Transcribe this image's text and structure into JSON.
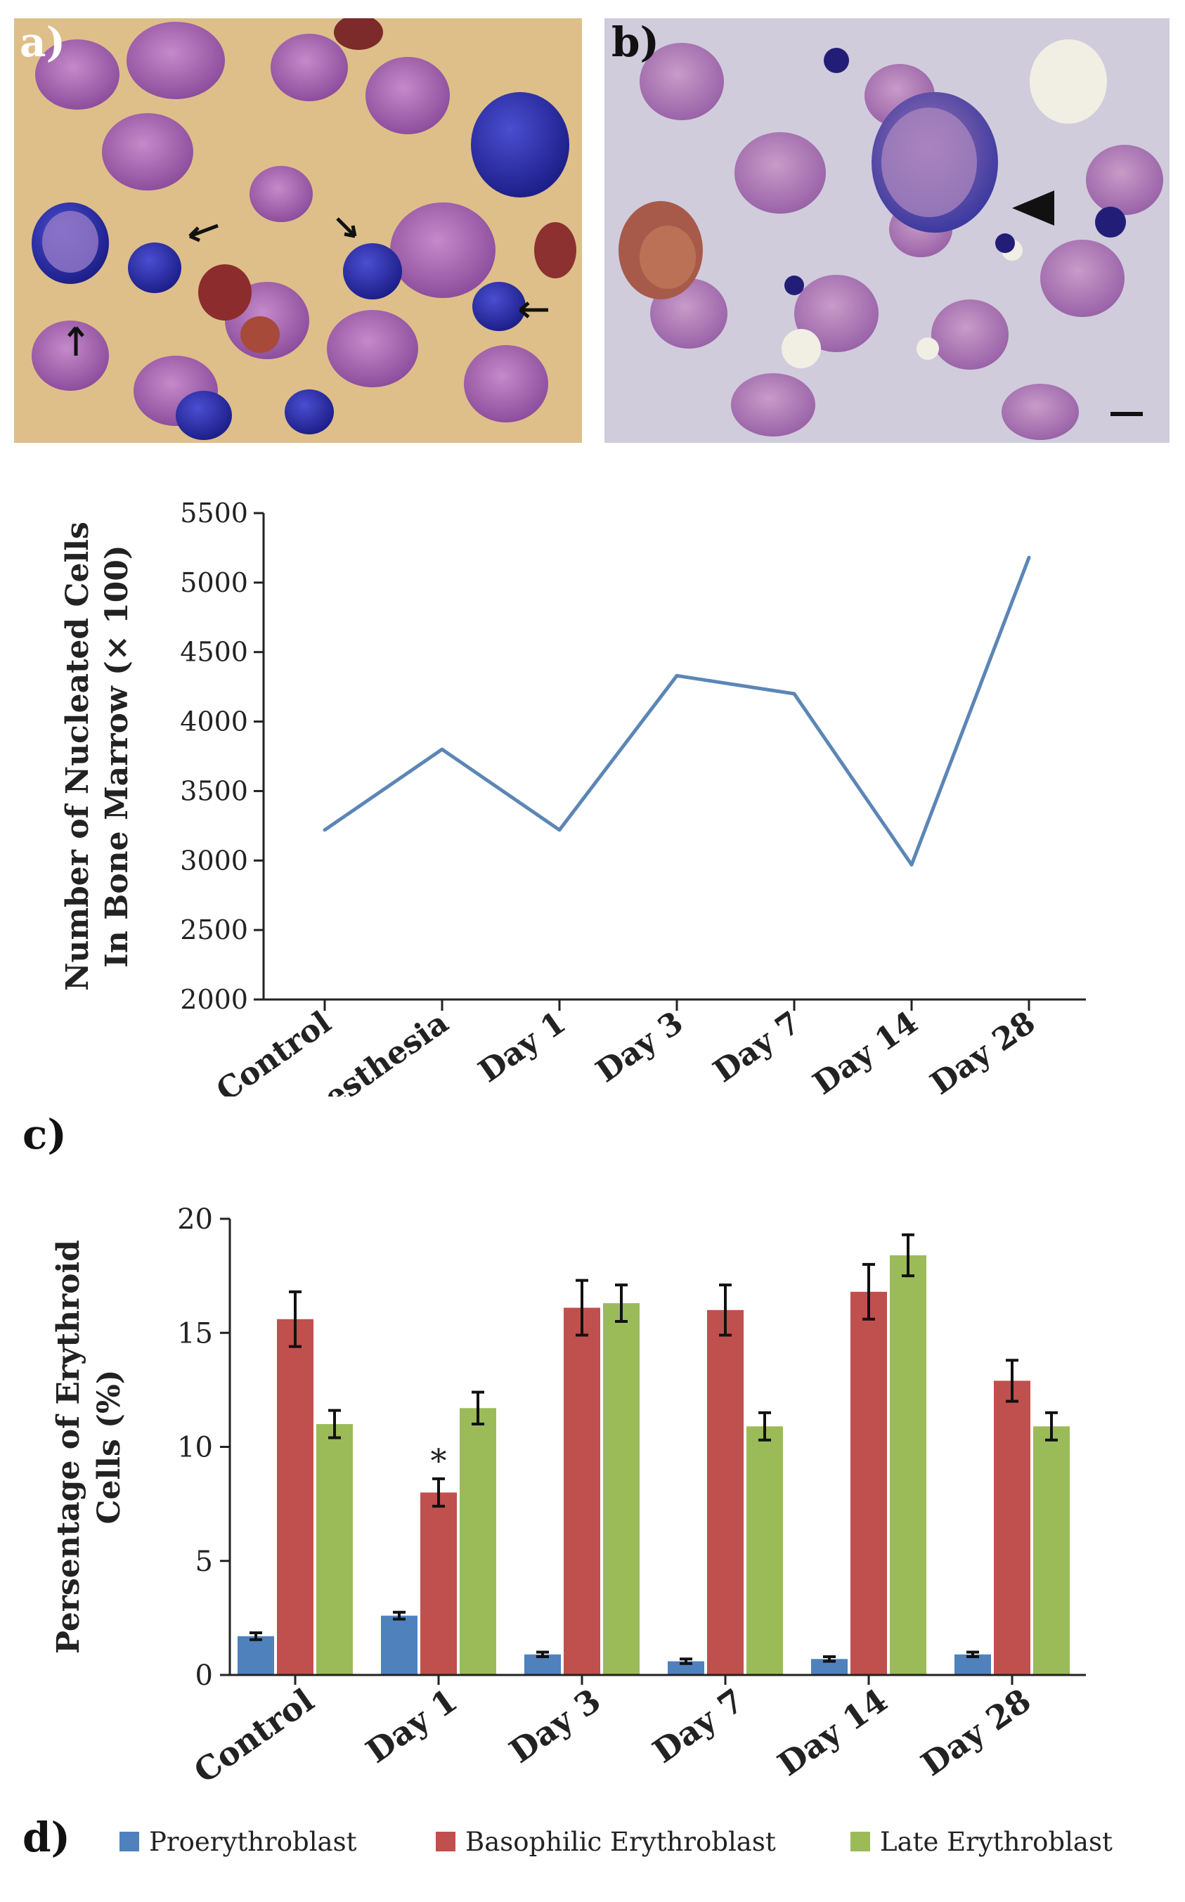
{
  "panels": {
    "a": {
      "label": "a)"
    },
    "b": {
      "label": "b)"
    },
    "c": {
      "label": "c)"
    },
    "d": {
      "label": "d)"
    }
  },
  "colors": {
    "line": "#5b86b6",
    "pro": "#4f81bd",
    "baso": "#c0504d",
    "late": "#9bbb59",
    "axis": "#222222"
  },
  "chart_data": [
    {
      "id": "c",
      "type": "line",
      "categories": [
        "Control",
        "Anesthesia",
        "Day 1",
        "Day 3",
        "Day 7",
        "Day 14",
        "Day 28"
      ],
      "values": [
        3220,
        3800,
        3220,
        4330,
        4200,
        2970,
        5180
      ],
      "ylabel": [
        "Number of Nucleated Cells",
        "In Bone Marrow (× 100)"
      ],
      "ylim": [
        2000,
        5500
      ],
      "yticks": [
        2000,
        2500,
        3000,
        3500,
        4000,
        4500,
        5000,
        5500
      ]
    },
    {
      "id": "d",
      "type": "bar",
      "categories": [
        "Control",
        "Day 1",
        "Day 3",
        "Day 7",
        "Day 14",
        "Day 28"
      ],
      "series": [
        {
          "name": "Proerythroblast",
          "values": [
            1.7,
            2.6,
            0.9,
            0.6,
            0.7,
            0.9
          ],
          "errors": [
            0.15,
            0.15,
            0.1,
            0.1,
            0.1,
            0.1
          ]
        },
        {
          "name": "Basophilic Erythroblast",
          "values": [
            15.6,
            8.0,
            16.1,
            16.0,
            16.8,
            12.9
          ],
          "errors": [
            1.2,
            0.6,
            1.2,
            1.1,
            1.2,
            0.9
          ]
        },
        {
          "name": "Late Erythroblast",
          "values": [
            11.0,
            11.7,
            16.3,
            10.9,
            18.4,
            10.9
          ],
          "errors": [
            0.6,
            0.7,
            0.8,
            0.6,
            0.9,
            0.6
          ]
        }
      ],
      "annotations": [
        {
          "category": "Day 1",
          "series": "Basophilic Erythroblast",
          "text": "*"
        }
      ],
      "ylabel": [
        "Persentage of Erythroid",
        "Cells (%)"
      ],
      "ylim": [
        0,
        20
      ],
      "yticks": [
        0,
        5,
        10,
        15,
        20
      ]
    }
  ]
}
